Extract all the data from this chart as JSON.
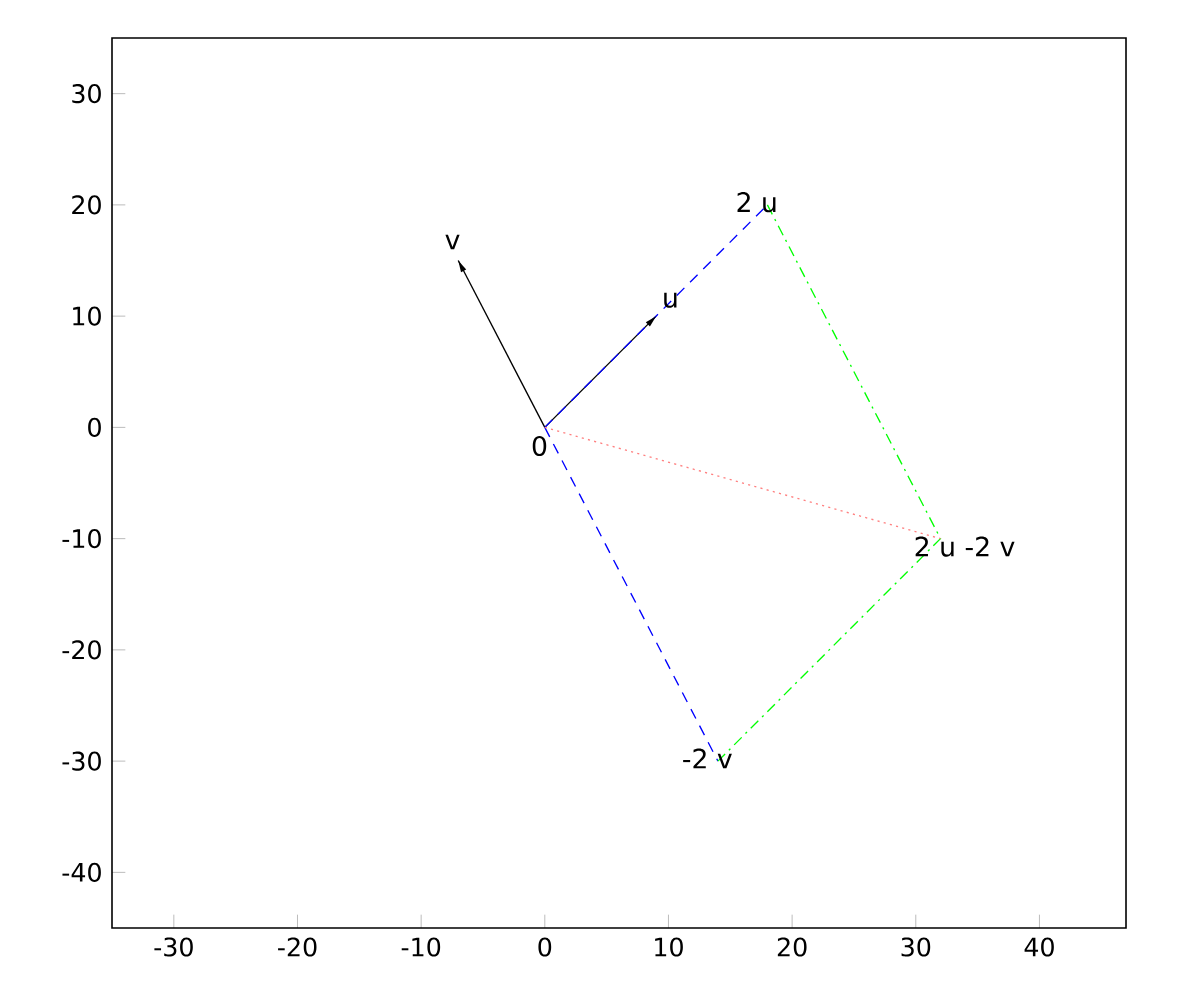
{
  "chart_data": {
    "type": "line",
    "xlim": [
      -35,
      47
    ],
    "ylim": [
      -45,
      35
    ],
    "xticks": [
      -30,
      -20,
      -10,
      0,
      10,
      20,
      30,
      40
    ],
    "yticks": [
      -40,
      -30,
      -20,
      -10,
      0,
      10,
      20,
      30
    ],
    "grid": false,
    "marker": "none",
    "series": [
      {
        "x": [
          0,
          9
        ],
        "values": [
          0,
          10
        ],
        "color": "#000000",
        "line_style": "solid"
      },
      {
        "x": [
          0,
          -7
        ],
        "values": [
          0,
          15
        ],
        "color": "#000000",
        "line_style": "solid"
      },
      {
        "x": [
          0,
          18
        ],
        "values": [
          0,
          20
        ],
        "color": "#0000ff",
        "line_style": "dashed"
      },
      {
        "x": [
          0,
          14
        ],
        "values": [
          0,
          -30
        ],
        "color": "#0000ff",
        "line_style": "dashed"
      },
      {
        "x": [
          18,
          32,
          14
        ],
        "values": [
          20,
          -10,
          -30
        ],
        "color": "#00ff00",
        "line_style": "dashdot"
      },
      {
        "x": [
          0,
          32
        ],
        "values": [
          0,
          -10
        ],
        "color": "#ff8080",
        "line_style": "dotted"
      }
    ],
    "annotations": [
      {
        "text": "0",
        "x": 0,
        "y": 0
      },
      {
        "text": "u",
        "x": 9,
        "y": 10
      },
      {
        "text": "v",
        "x": -7,
        "y": 15
      },
      {
        "text": "2 u",
        "x": 18,
        "y": 20
      },
      {
        "text": "-2 v",
        "x": 14,
        "y": -30
      },
      {
        "text": "2 u -2 v",
        "x": 32,
        "y": -10
      }
    ]
  }
}
